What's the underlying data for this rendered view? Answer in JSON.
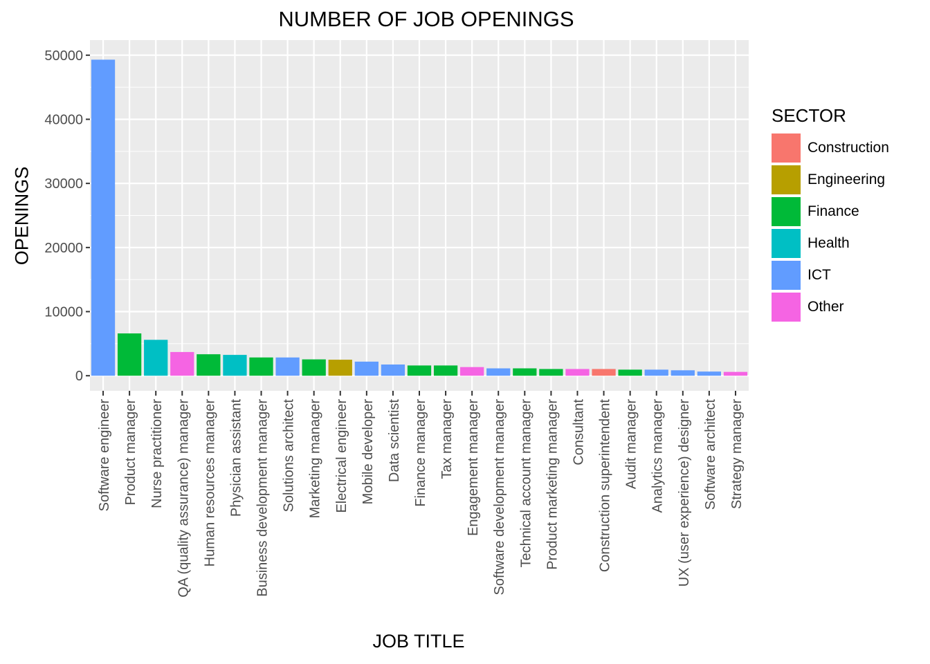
{
  "chart_data": {
    "type": "bar",
    "title": "NUMBER OF JOB OPENINGS",
    "xlabel": "JOB TITLE",
    "ylabel": "OPENINGS",
    "ylim": [
      0,
      52000
    ],
    "yticks": [
      0,
      10000,
      20000,
      30000,
      40000,
      50000
    ],
    "grid": true,
    "legend": {
      "title": "SECTOR",
      "placement": "right",
      "entries": [
        {
          "name": "Construction",
          "color": "#F8766D"
        },
        {
          "name": "Engineering",
          "color": "#B79F00"
        },
        {
          "name": "Finance",
          "color": "#00BA38"
        },
        {
          "name": "Health",
          "color": "#00BFC4"
        },
        {
          "name": "ICT",
          "color": "#619CFF"
        },
        {
          "name": "Other",
          "color": "#F564E3"
        }
      ]
    },
    "categories": [
      "Software engineer",
      "Product manager",
      "Nurse practitioner",
      "QA (quality assurance) manager",
      "Human resources manager",
      "Physician assistant",
      "Business development manager",
      "Solutions architect",
      "Marketing manager",
      "Electrical engineer",
      "Mobile developer",
      "Data scientist",
      "Finance manager",
      "Tax manager",
      "Engagement manager",
      "Software development manager",
      "Technical account manager",
      "Product marketing manager",
      "Consultant",
      "Construction superintendent",
      "Audit manager",
      "Analytics manager",
      "UX (user experience) designer",
      "Software architect",
      "Strategy manager"
    ],
    "values": [
      49300,
      6600,
      5600,
      3700,
      3350,
      3250,
      2850,
      2850,
      2550,
      2500,
      2200,
      1750,
      1600,
      1600,
      1350,
      1150,
      1150,
      1050,
      1050,
      1050,
      950,
      950,
      850,
      650,
      600
    ],
    "sectors": [
      "ICT",
      "Finance",
      "Health",
      "Other",
      "Finance",
      "Health",
      "Finance",
      "ICT",
      "Finance",
      "Engineering",
      "ICT",
      "ICT",
      "Finance",
      "Finance",
      "Other",
      "ICT",
      "Finance",
      "Finance",
      "Other",
      "Construction",
      "Finance",
      "ICT",
      "ICT",
      "ICT",
      "Other"
    ]
  },
  "style": {
    "panel_bg": "#EBEBEB",
    "grid_color": "#FFFFFF",
    "tick_label_color": "#4D4D4D",
    "tick_color": "#333333"
  }
}
